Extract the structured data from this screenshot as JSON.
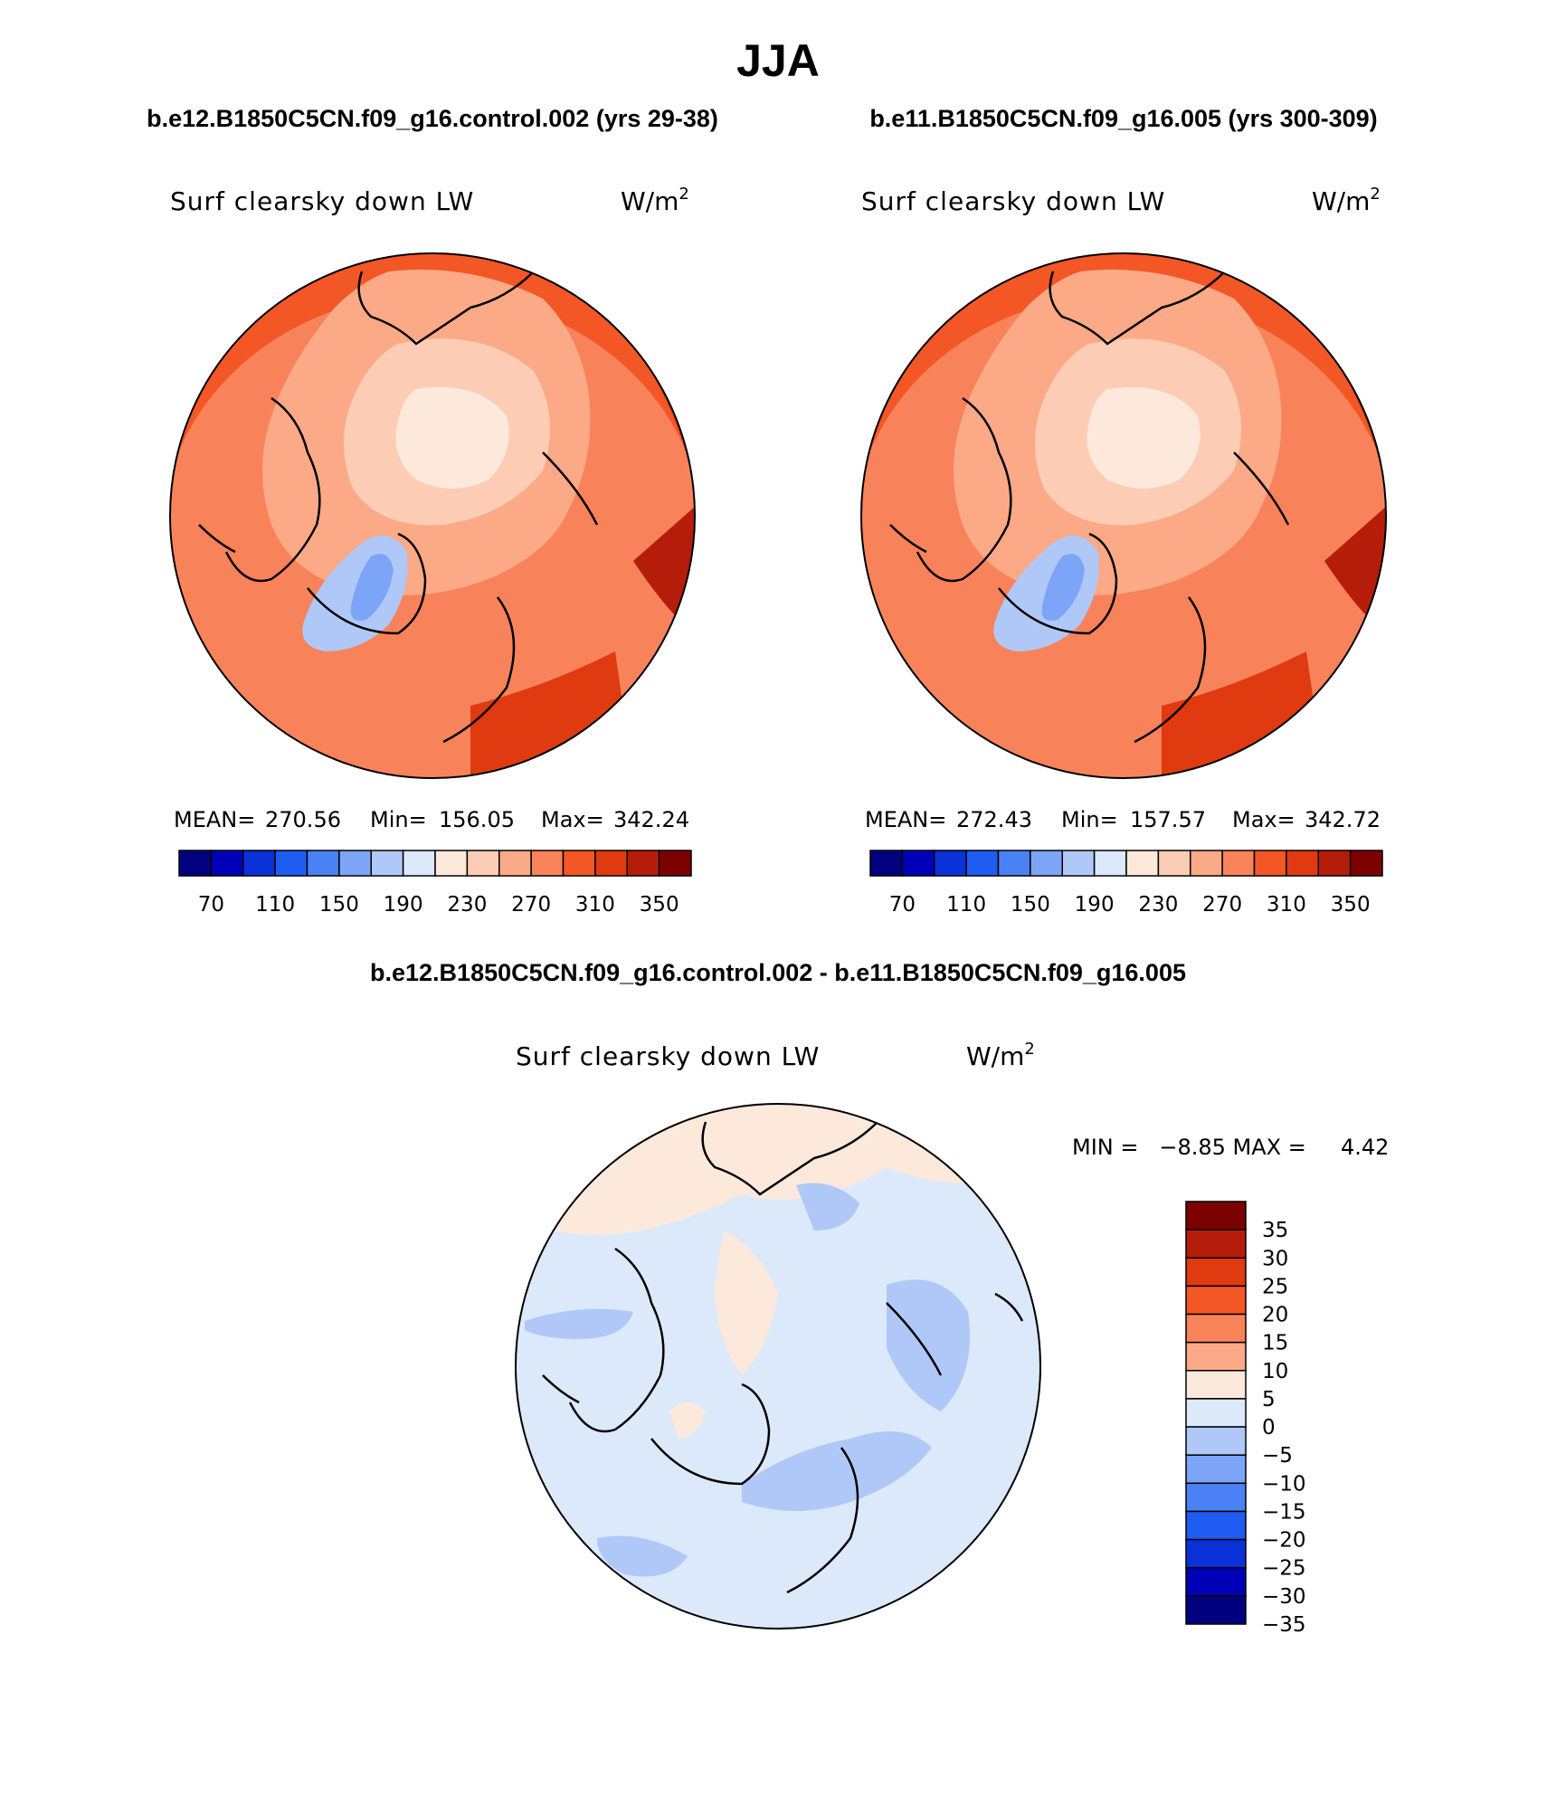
{
  "figure": {
    "title": "JJA",
    "case_a_title": "b.e12.B1850C5CN.f09_g16.control.002 (yrs 29-38)",
    "case_b_title": "b.e11.B1850C5CN.f09_g16.005 (yrs 300-309)",
    "diff_title": "b.e12.B1850C5CN.f09_g16.control.002 - b.e11.B1850C5CN.f09_g16.005"
  },
  "panels": [
    {
      "variable": "Surf clearsky down LW",
      "units": "W/m",
      "units_sup": "2",
      "stats": {
        "mean_label": "MEAN=",
        "mean": "270.56",
        "min_label": "Min=",
        "min": "156.05",
        "max_label": "Max=",
        "max": "342.24"
      }
    },
    {
      "variable": "Surf clearsky down LW",
      "units": "W/m",
      "units_sup": "2",
      "stats": {
        "mean_label": "MEAN=",
        "mean": "272.43",
        "min_label": "Min=",
        "min": "157.57",
        "max_label": "Max=",
        "max": "342.72"
      }
    }
  ],
  "diff_panel": {
    "variable": "Surf clearsky down LW",
    "units": "W/m",
    "units_sup": "2",
    "minmax_text": "MIN =   −8.85 MAX =     4.42"
  },
  "colorbar_abs": {
    "colors": [
      "#00007f",
      "#0000b8",
      "#0a32d8",
      "#1f5cf2",
      "#4a82f5",
      "#7ca5f7",
      "#b0c8f8",
      "#dbe9fb",
      "#fde9db",
      "#fccdb4",
      "#fba987",
      "#f8835a",
      "#f35726",
      "#df3a10",
      "#b51d0a",
      "#7d0000"
    ],
    "labels": [
      "70",
      "110",
      "150",
      "190",
      "230",
      "270",
      "310",
      "350"
    ]
  },
  "colorbar_diff": {
    "colors": [
      "#7d0000",
      "#b51d0a",
      "#df3a10",
      "#f35726",
      "#f8835a",
      "#fba987",
      "#fde9db",
      "#dbe9fb",
      "#b0c8f8",
      "#7ca5f7",
      "#4a82f5",
      "#1f5cf2",
      "#0a32d8",
      "#0000b8",
      "#00007f"
    ],
    "labels": [
      "35",
      "30",
      "25",
      "20",
      "15",
      "10",
      "5",
      "0",
      "−5",
      "−10",
      "−15",
      "−20",
      "−25",
      "−30",
      "−35"
    ]
  },
  "chart_data": [
    {
      "type": "heatmap",
      "projection": "north polar stereographic",
      "title": "b.e12.B1850C5CN.f09_g16.control.002 (yrs 29-38)",
      "variable": "Surf clearsky down LW",
      "units": "W/m2",
      "mean": 270.56,
      "min": 156.05,
      "max": 342.24,
      "contour_levels": [
        70,
        90,
        110,
        130,
        150,
        170,
        190,
        210,
        230,
        250,
        270,
        290,
        310,
        330,
        350
      ]
    },
    {
      "type": "heatmap",
      "projection": "north polar stereographic",
      "title": "b.e11.B1850C5CN.f09_g16.005 (yrs 300-309)",
      "variable": "Surf clearsky down LW",
      "units": "W/m2",
      "mean": 272.43,
      "min": 157.57,
      "max": 342.72,
      "contour_levels": [
        70,
        90,
        110,
        130,
        150,
        170,
        190,
        210,
        230,
        250,
        270,
        290,
        310,
        330,
        350
      ]
    },
    {
      "type": "heatmap",
      "projection": "north polar stereographic",
      "title": "b.e12.B1850C5CN.f09_g16.control.002 - b.e11.B1850C5CN.f09_g16.005",
      "variable": "Surf clearsky down LW",
      "units": "W/m2",
      "min": -8.85,
      "max": 4.42,
      "contour_levels": [
        -35,
        -30,
        -25,
        -20,
        -15,
        -10,
        -5,
        0,
        5,
        10,
        15,
        20,
        25,
        30,
        35
      ]
    }
  ]
}
